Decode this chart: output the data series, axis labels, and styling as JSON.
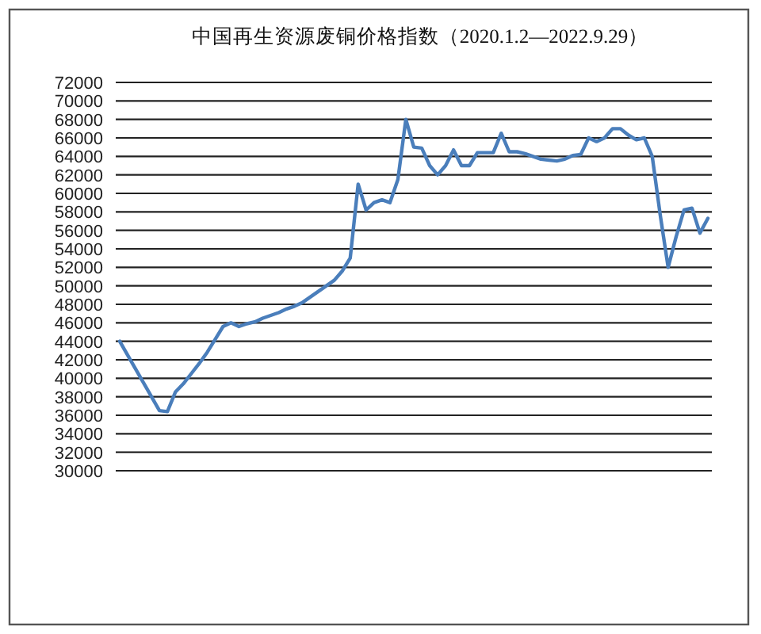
{
  "chart_data": {
    "type": "line",
    "title": "中国再生资源废铜价格指数（2020.1.2—2022.9.29）",
    "categories": [
      null,
      null,
      null,
      null,
      null,
      null,
      null,
      null,
      null,
      null,
      null,
      null,
      null,
      null,
      null,
      null,
      null,
      null,
      null,
      null,
      null,
      null,
      null,
      null,
      null,
      null,
      null,
      null,
      null,
      null,
      null,
      null,
      null,
      null,
      null,
      null,
      null,
      null,
      null,
      null,
      null,
      null,
      null,
      null,
      null,
      null,
      null,
      null,
      null,
      null,
      null,
      null,
      null,
      null,
      null,
      null,
      null,
      null,
      null,
      null,
      null,
      null,
      null,
      null,
      null,
      null,
      null,
      null,
      null,
      null,
      null,
      null,
      null,
      null,
      null
    ],
    "values": [
      44000,
      42500,
      41000,
      39500,
      38000,
      36500,
      36400,
      38500,
      39400,
      40500,
      41600,
      42800,
      44200,
      45600,
      46000,
      45600,
      45900,
      46100,
      46500,
      46800,
      47100,
      47500,
      47800,
      48200,
      48800,
      49400,
      50000,
      50600,
      51600,
      53000,
      61000,
      58200,
      59000,
      59300,
      59000,
      61500,
      68000,
      65000,
      64900,
      63000,
      62000,
      63000,
      64700,
      63000,
      63000,
      64400,
      64400,
      64400,
      66500,
      64500,
      64500,
      64300,
      64000,
      63700,
      63600,
      63500,
      63700,
      64100,
      64200,
      66000,
      65600,
      66000,
      67000,
      67000,
      66300,
      65800,
      66000,
      64000,
      57700,
      52000,
      55300,
      58200,
      58400,
      55700,
      57300
    ],
    "color": "#4a7ebb",
    "ylim": [
      30000,
      72000
    ],
    "yticks": [
      30000,
      32000,
      34000,
      36000,
      38000,
      40000,
      42000,
      44000,
      46000,
      48000,
      50000,
      52000,
      54000,
      56000,
      58000,
      60000,
      62000,
      64000,
      66000,
      68000,
      70000,
      72000
    ],
    "grid": "y",
    "tick_labels": "y"
  }
}
